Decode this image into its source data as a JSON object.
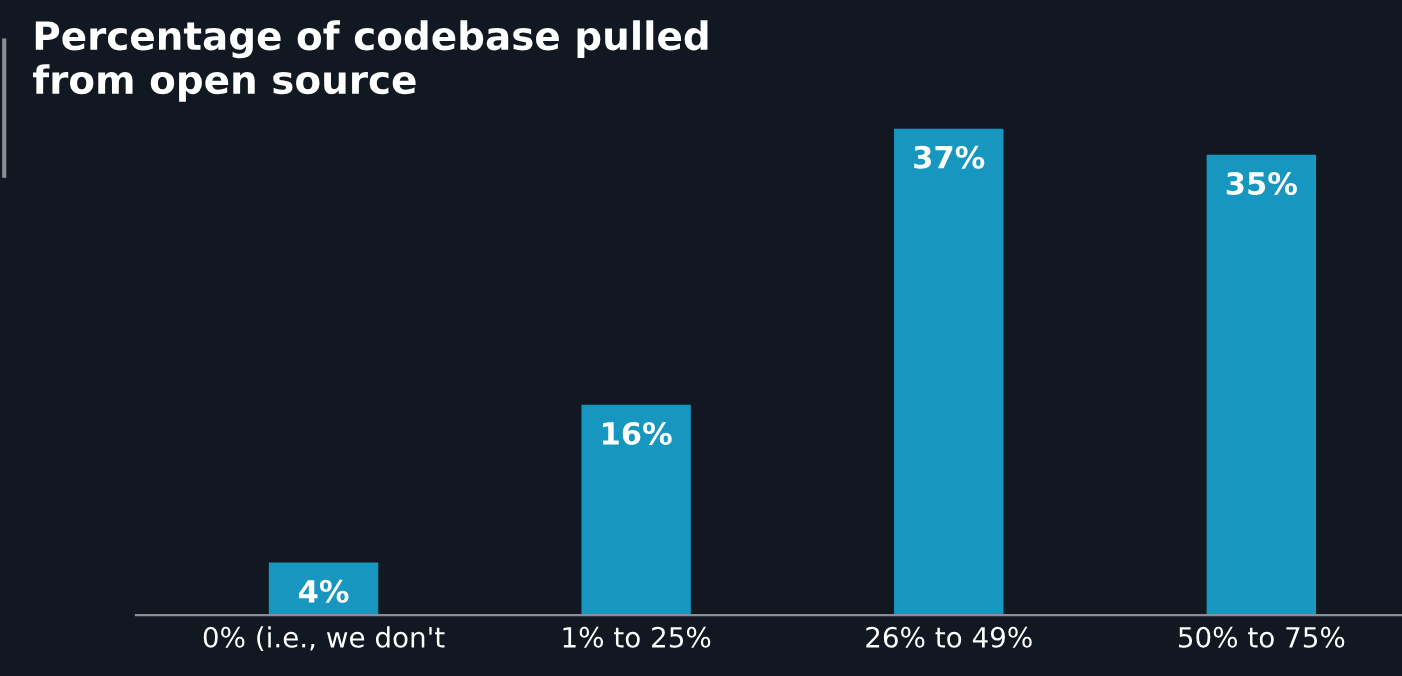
{
  "chart_data": {
    "type": "bar",
    "title": "Percentage of codebase pulled\nfrom open source",
    "categories": [
      "0% (i.e., we don't",
      "1% to 25%",
      "26% to 49%",
      "50% to 75%"
    ],
    "values": [
      4,
      16,
      37,
      35
    ],
    "color": "#1797bf",
    "data_labels": true,
    "value_labels": [
      "4%",
      "16%",
      "37%",
      "35%"
    ],
    "grid": false,
    "legend": false
  }
}
